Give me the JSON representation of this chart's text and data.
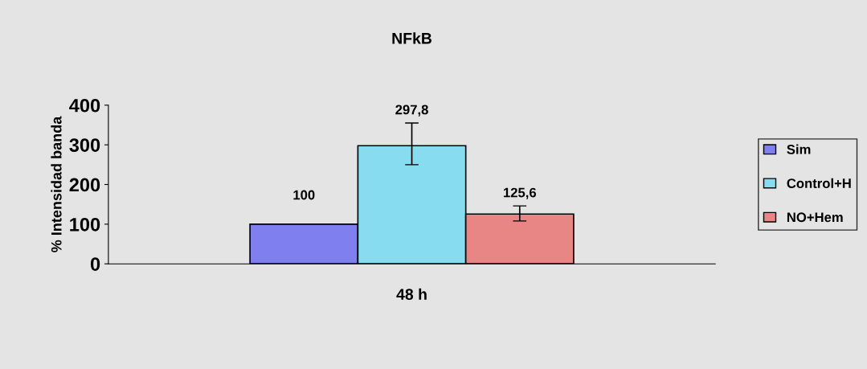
{
  "chart_data": {
    "type": "bar",
    "title": "NFkB",
    "ylabel": "% Intensidad banda",
    "categories": [
      "48 h"
    ],
    "series": [
      {
        "name": "Sim",
        "color": "#7f7ff0",
        "values": [
          100
        ],
        "value_labels": [
          "100"
        ],
        "errors": [
          null
        ]
      },
      {
        "name": "Control+H",
        "color": "#87dcf0",
        "values": [
          297.8
        ],
        "value_labels": [
          "297,8"
        ],
        "errors": [
          [
            250,
            355
          ]
        ]
      },
      {
        "name": "NO+Hem",
        "color": "#e88585",
        "values": [
          125.6
        ],
        "value_labels": [
          "125,6"
        ],
        "errors": [
          [
            108,
            146
          ]
        ]
      }
    ],
    "ylim": [
      0,
      400
    ],
    "yticks": [
      0,
      100,
      200,
      300,
      400
    ],
    "grid": false,
    "legend": "right"
  }
}
